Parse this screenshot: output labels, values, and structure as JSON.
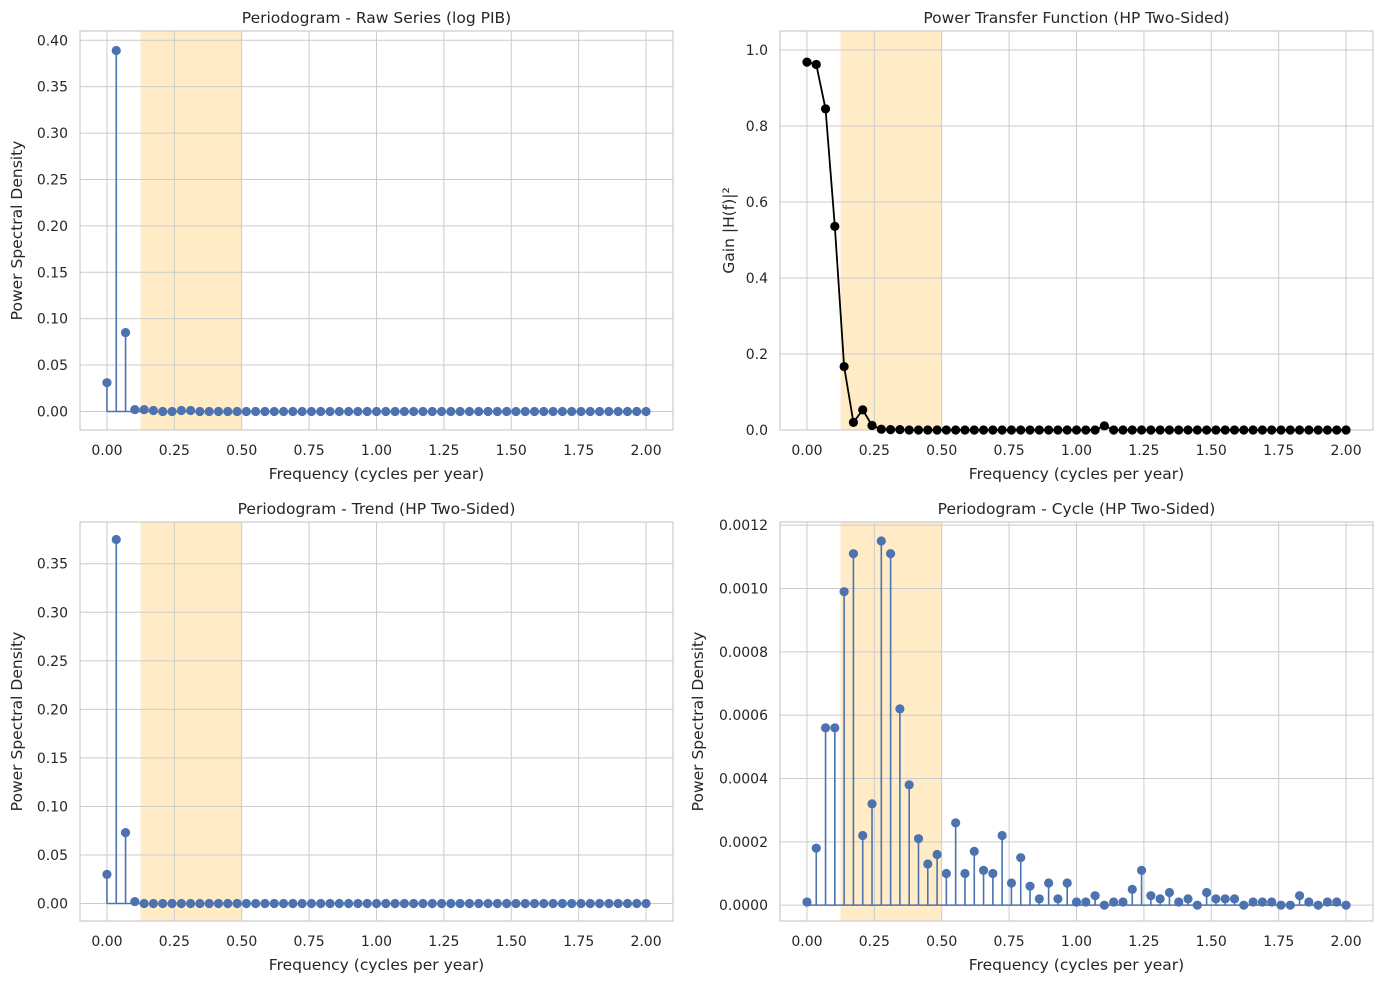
{
  "chart_data": [
    {
      "type": "stem",
      "title": "Periodogram - Raw Series (log PIB)",
      "xlabel": "Frequency (cycles per year)",
      "ylabel": "Power Spectral Density",
      "xlim": [
        -0.1,
        2.1
      ],
      "ylim": [
        -0.02,
        0.41
      ],
      "xticks": [
        0.0,
        0.25,
        0.5,
        0.75,
        1.0,
        1.25,
        1.5,
        1.75,
        2.0
      ],
      "xtick_labels": [
        "0.00",
        "0.25",
        "0.50",
        "0.75",
        "1.00",
        "1.25",
        "1.50",
        "1.75",
        "2.00"
      ],
      "yticks": [
        0.0,
        0.05,
        0.1,
        0.15,
        0.2,
        0.25,
        0.3,
        0.35,
        0.4
      ],
      "ytick_labels": [
        "0.00",
        "0.05",
        "0.10",
        "0.15",
        "0.20",
        "0.25",
        "0.30",
        "0.35",
        "0.40"
      ],
      "shaded_band": [
        0.125,
        0.5
      ],
      "grid": true,
      "color": "#4c72b0",
      "x": [
        0.0,
        0.0345,
        0.069,
        0.1034,
        0.1379,
        0.1724,
        0.2069,
        0.2414,
        0.2759,
        0.3103,
        0.3448,
        0.3793,
        0.4138,
        0.4483,
        0.4828,
        0.5172,
        0.5517,
        0.5862,
        0.6207,
        0.6552,
        0.6897,
        0.7241,
        0.7586,
        0.7931,
        0.8276,
        0.8621,
        0.8966,
        0.931,
        0.9655,
        1.0,
        1.0345,
        1.069,
        1.1034,
        1.1379,
        1.1724,
        1.2069,
        1.2414,
        1.2759,
        1.3103,
        1.3448,
        1.3793,
        1.4138,
        1.4483,
        1.4828,
        1.5172,
        1.5517,
        1.5862,
        1.6207,
        1.6552,
        1.6897,
        1.7241,
        1.7586,
        1.7931,
        1.8276,
        1.8621,
        1.8966,
        1.931,
        1.9655,
        2.0
      ],
      "y": [
        0.031,
        0.389,
        0.085,
        0.002,
        0.002,
        0.001,
        0.0,
        0.0,
        0.001,
        0.001,
        0.0,
        0.0,
        0.0,
        0.0,
        0.0,
        0.0,
        0.0,
        0.0,
        0.0,
        0.0,
        0.0,
        0.0,
        0.0,
        0.0,
        0.0,
        0.0,
        0.0,
        0.0,
        0.0,
        0.0,
        0.0,
        0.0,
        0.0,
        0.0,
        0.0,
        0.0,
        0.0,
        0.0,
        0.0,
        0.0,
        0.0,
        0.0,
        0.0,
        0.0,
        0.0,
        0.0,
        0.0,
        0.0,
        0.0,
        0.0,
        0.0,
        0.0,
        0.0,
        0.0,
        0.0,
        0.0,
        0.0,
        0.0,
        0.0
      ]
    },
    {
      "type": "line",
      "title": "Power Transfer Function (HP Two-Sided)",
      "xlabel": "Frequency (cycles per year)",
      "ylabel": "Gain |H(f)|²",
      "xlim": [
        -0.1,
        2.1
      ],
      "ylim": [
        0.0,
        1.05
      ],
      "xticks": [
        0.0,
        0.25,
        0.5,
        0.75,
        1.0,
        1.25,
        1.5,
        1.75,
        2.0
      ],
      "xtick_labels": [
        "0.00",
        "0.25",
        "0.50",
        "0.75",
        "1.00",
        "1.25",
        "1.50",
        "1.75",
        "2.00"
      ],
      "yticks": [
        0.0,
        0.2,
        0.4,
        0.6,
        0.8,
        1.0
      ],
      "ytick_labels": [
        "0.0",
        "0.2",
        "0.4",
        "0.6",
        "0.8",
        "1.0"
      ],
      "shaded_band": [
        0.125,
        0.5
      ],
      "grid": true,
      "color": "#000000",
      "x": [
        0.0,
        0.0345,
        0.069,
        0.1034,
        0.1379,
        0.1724,
        0.2069,
        0.2414,
        0.2759,
        0.3103,
        0.3448,
        0.3793,
        0.4138,
        0.4483,
        0.4828,
        0.5172,
        0.5517,
        0.5862,
        0.6207,
        0.6552,
        0.6897,
        0.7241,
        0.7586,
        0.7931,
        0.8276,
        0.8621,
        0.8966,
        0.931,
        0.9655,
        1.0,
        1.0345,
        1.069,
        1.1034,
        1.1379,
        1.1724,
        1.2069,
        1.2414,
        1.2759,
        1.3103,
        1.3448,
        1.3793,
        1.4138,
        1.4483,
        1.4828,
        1.5172,
        1.5517,
        1.5862,
        1.6207,
        1.6552,
        1.6897,
        1.7241,
        1.7586,
        1.7931,
        1.8276,
        1.8621,
        1.8966,
        1.931,
        1.9655,
        2.0
      ],
      "y": [
        0.968,
        0.962,
        0.845,
        0.536,
        0.167,
        0.02,
        0.053,
        0.012,
        0.002,
        0.001,
        0.001,
        0.0,
        0.0,
        0.0,
        0.0,
        0.0,
        0.0,
        0.0,
        0.0,
        0.0,
        0.0,
        0.0,
        0.0,
        0.0,
        0.0,
        0.0,
        0.0,
        0.0,
        0.0,
        0.0,
        0.0,
        0.0,
        0.011,
        0.0,
        0.0,
        0.0,
        0.0,
        0.0,
        0.0,
        0.0,
        0.0,
        0.0,
        0.0,
        0.0,
        0.0,
        0.0,
        0.0,
        0.0,
        0.0,
        0.0,
        0.0,
        0.0,
        0.0,
        0.0,
        0.0,
        0.0,
        0.0,
        0.0,
        0.0
      ]
    },
    {
      "type": "stem",
      "title": "Periodogram - Trend (HP Two-Sided)",
      "xlabel": "Frequency (cycles per year)",
      "ylabel": "Power Spectral Density",
      "xlim": [
        -0.1,
        2.1
      ],
      "ylim": [
        -0.018,
        0.393
      ],
      "xticks": [
        0.0,
        0.25,
        0.5,
        0.75,
        1.0,
        1.25,
        1.5,
        1.75,
        2.0
      ],
      "xtick_labels": [
        "0.00",
        "0.25",
        "0.50",
        "0.75",
        "1.00",
        "1.25",
        "1.50",
        "1.75",
        "2.00"
      ],
      "yticks": [
        0.0,
        0.05,
        0.1,
        0.15,
        0.2,
        0.25,
        0.3,
        0.35
      ],
      "ytick_labels": [
        "0.00",
        "0.05",
        "0.10",
        "0.15",
        "0.20",
        "0.25",
        "0.30",
        "0.35"
      ],
      "shaded_band": [
        0.125,
        0.5
      ],
      "grid": true,
      "color": "#4c72b0",
      "x": [
        0.0,
        0.0345,
        0.069,
        0.1034,
        0.1379,
        0.1724,
        0.2069,
        0.2414,
        0.2759,
        0.3103,
        0.3448,
        0.3793,
        0.4138,
        0.4483,
        0.4828,
        0.5172,
        0.5517,
        0.5862,
        0.6207,
        0.6552,
        0.6897,
        0.7241,
        0.7586,
        0.7931,
        0.8276,
        0.8621,
        0.8966,
        0.931,
        0.9655,
        1.0,
        1.0345,
        1.069,
        1.1034,
        1.1379,
        1.1724,
        1.2069,
        1.2414,
        1.2759,
        1.3103,
        1.3448,
        1.3793,
        1.4138,
        1.4483,
        1.4828,
        1.5172,
        1.5517,
        1.5862,
        1.6207,
        1.6552,
        1.6897,
        1.7241,
        1.7586,
        1.7931,
        1.8276,
        1.8621,
        1.8966,
        1.931,
        1.9655,
        2.0
      ],
      "y": [
        0.03,
        0.375,
        0.073,
        0.002,
        0.0,
        0.0,
        0.0,
        0.0,
        0.0,
        0.0,
        0.0,
        0.0,
        0.0,
        0.0,
        0.0,
        0.0,
        0.0,
        0.0,
        0.0,
        0.0,
        0.0,
        0.0,
        0.0,
        0.0,
        0.0,
        0.0,
        0.0,
        0.0,
        0.0,
        0.0,
        0.0,
        0.0,
        0.0,
        0.0,
        0.0,
        0.0,
        0.0,
        0.0,
        0.0,
        0.0,
        0.0,
        0.0,
        0.0,
        0.0,
        0.0,
        0.0,
        0.0,
        0.0,
        0.0,
        0.0,
        0.0,
        0.0,
        0.0,
        0.0,
        0.0,
        0.0,
        0.0,
        0.0,
        0.0
      ]
    },
    {
      "type": "stem",
      "title": "Periodogram - Cycle (HP Two-Sided)",
      "xlabel": "Frequency (cycles per year)",
      "ylabel": "Power Spectral Density",
      "xlim": [
        -0.1,
        2.1
      ],
      "ylim": [
        -5e-05,
        0.00121
      ],
      "xticks": [
        0.0,
        0.25,
        0.5,
        0.75,
        1.0,
        1.25,
        1.5,
        1.75,
        2.0
      ],
      "xtick_labels": [
        "0.00",
        "0.25",
        "0.50",
        "0.75",
        "1.00",
        "1.25",
        "1.50",
        "1.75",
        "2.00"
      ],
      "yticks": [
        0.0,
        0.0002,
        0.0004,
        0.0006,
        0.0008,
        0.001,
        0.0012
      ],
      "ytick_labels": [
        "0.0000",
        "0.0002",
        "0.0004",
        "0.0006",
        "0.0008",
        "0.0010",
        "0.0012"
      ],
      "shaded_band": [
        0.125,
        0.5
      ],
      "grid": true,
      "color": "#4c72b0",
      "x": [
        0.0,
        0.0345,
        0.069,
        0.1034,
        0.1379,
        0.1724,
        0.2069,
        0.2414,
        0.2759,
        0.3103,
        0.3448,
        0.3793,
        0.4138,
        0.4483,
        0.4828,
        0.5172,
        0.5517,
        0.5862,
        0.6207,
        0.6552,
        0.6897,
        0.7241,
        0.7586,
        0.7931,
        0.8276,
        0.8621,
        0.8966,
        0.931,
        0.9655,
        1.0,
        1.0345,
        1.069,
        1.1034,
        1.1379,
        1.1724,
        1.2069,
        1.2414,
        1.2759,
        1.3103,
        1.3448,
        1.3793,
        1.4138,
        1.4483,
        1.4828,
        1.5172,
        1.5517,
        1.5862,
        1.6207,
        1.6552,
        1.6897,
        1.7241,
        1.7586,
        1.7931,
        1.8276,
        1.8621,
        1.8966,
        1.931,
        1.9655,
        2.0
      ],
      "y": [
        1e-05,
        0.00018,
        0.00056,
        0.00056,
        0.00099,
        0.00111,
        0.00022,
        0.00032,
        0.00115,
        0.00111,
        0.00062,
        0.00038,
        0.00021,
        0.00013,
        0.00016,
        0.0001,
        0.00026,
        0.0001,
        0.00017,
        0.00011,
        0.0001,
        0.00022,
        7e-05,
        0.00015,
        6e-05,
        2e-05,
        7e-05,
        2e-05,
        7e-05,
        1e-05,
        1e-05,
        3e-05,
        0.0,
        1e-05,
        1e-05,
        5e-05,
        0.00011,
        3e-05,
        2e-05,
        4e-05,
        1e-05,
        2e-05,
        0.0,
        4e-05,
        2e-05,
        2e-05,
        2e-05,
        0.0,
        1e-05,
        1e-05,
        1e-05,
        0.0,
        0.0,
        3e-05,
        1e-05,
        0.0,
        1e-05,
        1e-05,
        0.0
      ]
    }
  ],
  "style": {
    "band_color": "#ffecc6",
    "grid_color": "#cccccc",
    "text_color": "#262626"
  }
}
